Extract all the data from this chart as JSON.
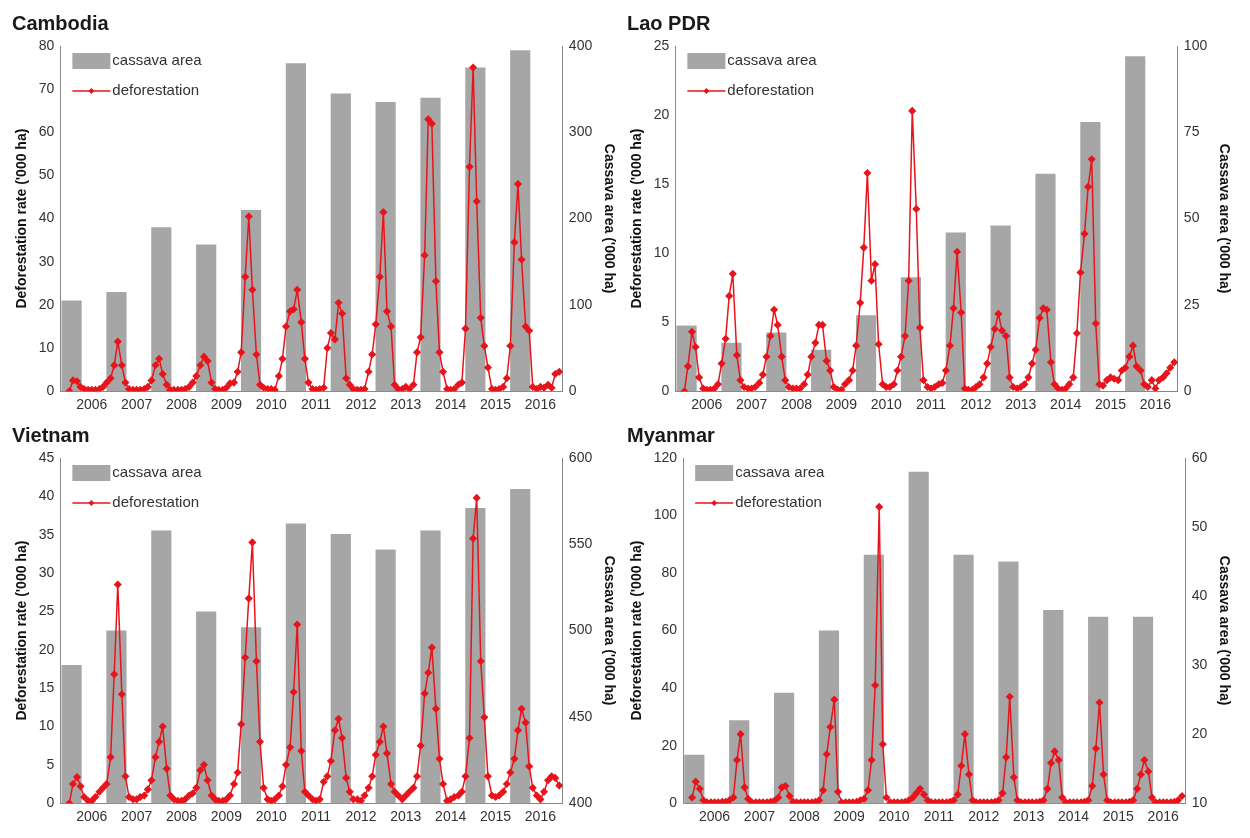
{
  "chart_data": [
    {
      "type": "line",
      "title": "Cambodia",
      "ylabel": "Deforestation rate ('000 ha)",
      "y2label": "Cassava area ('000 ha)",
      "xlim": [
        2005.3,
        2016.5
      ],
      "xticks": [
        2006,
        2007,
        2008,
        2009,
        2010,
        2011,
        2012,
        2013,
        2014,
        2015,
        2016
      ],
      "ylim": [
        0,
        80
      ],
      "yticks": [
        0,
        10,
        20,
        30,
        40,
        50,
        60,
        70,
        80
      ],
      "y2lim": [
        0,
        400
      ],
      "y2ticks": [
        0,
        100,
        200,
        300,
        400
      ],
      "legend": "top left",
      "marker": "diamond",
      "grid": false,
      "x": [
        2005.5,
        2005.58,
        2005.67,
        2005.75,
        2005.83,
        2005.92,
        2006,
        2006.08,
        2006.17,
        2006.25,
        2006.33,
        2006.42,
        2006.5,
        2006.58,
        2006.67,
        2006.75,
        2006.83,
        2006.92,
        2007,
        2007.08,
        2007.17,
        2007.25,
        2007.33,
        2007.42,
        2007.5,
        2007.58,
        2007.67,
        2007.75,
        2007.83,
        2007.92,
        2008,
        2008.08,
        2008.17,
        2008.25,
        2008.33,
        2008.42,
        2008.5,
        2008.58,
        2008.67,
        2008.75,
        2008.83,
        2008.92,
        2009,
        2009.08,
        2009.17,
        2009.25,
        2009.33,
        2009.42,
        2009.5,
        2009.58,
        2009.67,
        2009.75,
        2009.83,
        2009.92,
        2010,
        2010.08,
        2010.17,
        2010.25,
        2010.33,
        2010.42,
        2010.5,
        2010.58,
        2010.67,
        2010.75,
        2010.83,
        2010.92,
        2011,
        2011.08,
        2011.17,
        2011.25,
        2011.33,
        2011.42,
        2011.5,
        2011.58,
        2011.67,
        2011.75,
        2011.83,
        2011.92,
        2012,
        2012.08,
        2012.17,
        2012.25,
        2012.33,
        2012.42,
        2012.5,
        2012.58,
        2012.67,
        2012.75,
        2012.83,
        2012.92,
        2013,
        2013.08,
        2013.17,
        2013.25,
        2013.33,
        2013.42,
        2013.5,
        2013.58,
        2013.67,
        2013.75,
        2013.83,
        2013.92,
        2014,
        2014.08,
        2014.17,
        2014.25,
        2014.33,
        2014.42,
        2014.5,
        2014.58,
        2014.67,
        2014.75,
        2014.83,
        2014.92,
        2015,
        2015.08,
        2015.17,
        2015.25,
        2015.33,
        2015.42,
        2015.5,
        2015.58,
        2015.67,
        2015.75,
        2015.83,
        2015.92,
        2016,
        2016.08,
        2016.17,
        2016.25,
        2016.33,
        2016.42
      ],
      "series": [
        {
          "name": "cassava area",
          "type": "bar",
          "axis": "y2",
          "color": "#a6a6a6",
          "x": [
            2005.55,
            2006.55,
            2007.55,
            2008.55,
            2009.55,
            2010.55,
            2011.55,
            2012.55,
            2013.55,
            2014.55,
            2015.55
          ],
          "values": [
            105,
            115,
            190,
            170,
            210,
            380,
            345,
            335,
            340,
            375,
            395
          ]
        },
        {
          "name": "deforestation",
          "color": "#e8141b",
          "values": [
            0,
            2.5,
            2.3,
            1,
            0.5,
            0.3,
            0.3,
            0.3,
            0.5,
            1,
            2,
            3,
            6,
            11.5,
            6,
            2,
            0.5,
            0.3,
            0.3,
            0.3,
            0.5,
            1,
            2.5,
            6,
            7.5,
            4,
            1.5,
            0.3,
            0.3,
            0.3,
            0.3,
            0.5,
            1,
            2,
            3.5,
            6,
            8,
            7,
            2,
            0.5,
            0.3,
            0.3,
            0.8,
            1.8,
            2,
            4.5,
            9,
            26.5,
            40.5,
            23.5,
            8.5,
            1.5,
            0.8,
            0.5,
            0.5,
            0.3,
            3.5,
            7.5,
            15,
            18.5,
            19,
            23.5,
            16,
            7.5,
            2,
            0.5,
            0.3,
            0.5,
            0.8,
            10,
            13.5,
            12,
            20.5,
            18,
            3,
            1.5,
            0.5,
            0.3,
            0.3,
            0.5,
            4.5,
            8.5,
            15.5,
            26.5,
            41.5,
            18.5,
            15,
            1.5,
            0.5,
            0.5,
            1,
            0.5,
            1.5,
            9,
            12.5,
            31.5,
            63,
            62,
            25.5,
            9,
            4.5,
            0.5,
            0.3,
            0.5,
            1.5,
            2,
            14.5,
            52,
            75,
            44,
            17,
            10.5,
            5.5,
            0.5,
            0.3,
            0.5,
            1,
            3,
            10.5,
            34.5,
            48,
            30.5,
            15,
            14,
            1,
            0.5,
            1,
            0.8,
            1.5,
            0.8,
            4,
            4.5
          ]
        }
      ]
    },
    {
      "type": "line",
      "title": "Lao PDR",
      "ylabel": "Deforestation rate ('000 ha)",
      "y2label": "Cassava area ('000 ha)",
      "xlim": [
        2005.3,
        2016.5
      ],
      "xticks": [
        2006,
        2007,
        2008,
        2009,
        2010,
        2011,
        2012,
        2013,
        2014,
        2015,
        2016
      ],
      "ylim": [
        0,
        25
      ],
      "yticks": [
        0,
        5,
        10,
        15,
        20,
        25
      ],
      "y2lim": [
        0,
        100
      ],
      "y2ticks": [
        0,
        25,
        50,
        75,
        100
      ],
      "legend": "top left",
      "marker": "diamond",
      "grid": false,
      "x": [
        2005.5,
        2005.58,
        2005.67,
        2005.75,
        2005.83,
        2005.92,
        2006,
        2006.08,
        2006.17,
        2006.25,
        2006.33,
        2006.42,
        2006.5,
        2006.58,
        2006.67,
        2006.75,
        2006.83,
        2006.92,
        2007,
        2007.08,
        2007.17,
        2007.25,
        2007.33,
        2007.42,
        2007.5,
        2007.58,
        2007.67,
        2007.75,
        2007.83,
        2007.92,
        2008,
        2008.08,
        2008.17,
        2008.25,
        2008.33,
        2008.42,
        2008.5,
        2008.58,
        2008.67,
        2008.75,
        2008.83,
        2008.92,
        2009,
        2009.08,
        2009.17,
        2009.25,
        2009.33,
        2009.42,
        2009.5,
        2009.58,
        2009.67,
        2009.75,
        2009.83,
        2009.92,
        2010,
        2010.08,
        2010.17,
        2010.25,
        2010.33,
        2010.42,
        2010.5,
        2010.58,
        2010.67,
        2010.75,
        2010.83,
        2010.92,
        2011,
        2011.08,
        2011.17,
        2011.25,
        2011.33,
        2011.42,
        2011.5,
        2011.58,
        2011.67,
        2011.75,
        2011.83,
        2011.92,
        2012,
        2012.08,
        2012.17,
        2012.25,
        2012.33,
        2012.42,
        2012.5,
        2012.58,
        2012.67,
        2012.75,
        2012.83,
        2012.92,
        2013,
        2013.08,
        2013.17,
        2013.25,
        2013.33,
        2013.42,
        2013.5,
        2013.58,
        2013.67,
        2013.75,
        2013.83,
        2013.92,
        2014,
        2014.08,
        2014.17,
        2014.25,
        2014.33,
        2014.42,
        2014.5,
        2014.58,
        2014.67,
        2014.75,
        2014.83,
        2014.92,
        2015,
        2015.08,
        2015.17,
        2015.25,
        2015.33,
        2015.42,
        2015.5,
        2015.58,
        2015.67,
        2015.75,
        2015.83,
        2015.92,
        2016,
        2016.08,
        2016.17,
        2016.25,
        2016.33,
        2016.42
      ],
      "series": [
        {
          "name": "cassava area",
          "type": "bar",
          "axis": "y2",
          "color": "#a6a6a6",
          "x": [
            2005.55,
            2006.55,
            2007.55,
            2008.55,
            2009.55,
            2010.55,
            2011.55,
            2012.55,
            2013.55,
            2014.55,
            2015.55
          ],
          "values": [
            19,
            14,
            17,
            12,
            22,
            33,
            46,
            48,
            63,
            78,
            97
          ]
        },
        {
          "name": "deforestation",
          "color": "#e8141b",
          "values": [
            0,
            1.8,
            4.3,
            3.2,
            1,
            0.2,
            0.1,
            0.1,
            0.2,
            0.5,
            2,
            3.8,
            6.9,
            8.5,
            2.6,
            0.8,
            0.3,
            0.2,
            0.2,
            0.3,
            0.6,
            1.2,
            2.5,
            4,
            5.9,
            4.8,
            2.5,
            0.8,
            0.3,
            0.2,
            0.2,
            0.2,
            0.5,
            1.2,
            2.5,
            3.5,
            4.8,
            4.8,
            2.2,
            1.5,
            0.3,
            0.1,
            0.1,
            0.5,
            0.8,
            1.5,
            3.3,
            6.4,
            10.4,
            15.8,
            8,
            9.2,
            3.4,
            0.5,
            0.3,
            0.3,
            0.5,
            1.5,
            2.5,
            4,
            8,
            20.3,
            13.2,
            4.6,
            0.8,
            0.3,
            0.2,
            0.3,
            0.5,
            0.6,
            1.5,
            3.3,
            6,
            10.1,
            5.7,
            0.2,
            0.1,
            0.1,
            0.3,
            0.5,
            1,
            2,
            3.2,
            4.5,
            5.6,
            4.4,
            4,
            1,
            0.3,
            0.2,
            0.3,
            0.5,
            1,
            2,
            3,
            5.3,
            6,
            5.9,
            2.1,
            0.5,
            0.2,
            0.1,
            0.2,
            0.5,
            1,
            4.2,
            8.6,
            11.4,
            14.8,
            16.8,
            4.9,
            0.5,
            0.4,
            0.8,
            1,
            0.9,
            0.8,
            1.5,
            1.7,
            2.5,
            3.3,
            1.8,
            1.5,
            0.5,
            0.3,
            0.8,
            0.2,
            0.8,
            1,
            1.3,
            1.7,
            2.1
          ]
        }
      ]
    },
    {
      "type": "line",
      "title": "Vietnam",
      "ylabel": "Deforestation rate ('000 ha)",
      "y2label": "Cassava area ('000 ha)",
      "xlim": [
        2005.3,
        2016.5
      ],
      "xticks": [
        2006,
        2007,
        2008,
        2009,
        2010,
        2011,
        2012,
        2013,
        2014,
        2015,
        2016
      ],
      "ylim": [
        0,
        45
      ],
      "yticks": [
        0,
        5,
        10,
        15,
        20,
        25,
        30,
        35,
        40,
        45
      ],
      "y2lim": [
        400,
        600
      ],
      "y2ticks": [
        400,
        450,
        500,
        550,
        600
      ],
      "legend": "top left",
      "marker": "diamond",
      "grid": false,
      "x": [
        2005.5,
        2005.58,
        2005.67,
        2005.75,
        2005.83,
        2005.92,
        2006,
        2006.08,
        2006.17,
        2006.25,
        2006.33,
        2006.42,
        2006.5,
        2006.58,
        2006.67,
        2006.75,
        2006.83,
        2006.92,
        2007,
        2007.08,
        2007.17,
        2007.25,
        2007.33,
        2007.42,
        2007.5,
        2007.58,
        2007.67,
        2007.75,
        2007.83,
        2007.92,
        2008,
        2008.08,
        2008.17,
        2008.25,
        2008.33,
        2008.42,
        2008.5,
        2008.58,
        2008.67,
        2008.75,
        2008.83,
        2008.92,
        2009,
        2009.08,
        2009.17,
        2009.25,
        2009.33,
        2009.42,
        2009.5,
        2009.58,
        2009.67,
        2009.75,
        2009.83,
        2009.92,
        2010,
        2010.08,
        2010.17,
        2010.25,
        2010.33,
        2010.42,
        2010.5,
        2010.58,
        2010.67,
        2010.75,
        2010.83,
        2010.92,
        2011,
        2011.08,
        2011.17,
        2011.25,
        2011.33,
        2011.42,
        2011.5,
        2011.58,
        2011.67,
        2011.75,
        2011.83,
        2011.92,
        2012,
        2012.08,
        2012.17,
        2012.25,
        2012.33,
        2012.42,
        2012.5,
        2012.58,
        2012.67,
        2012.75,
        2012.83,
        2012.92,
        2013,
        2013.08,
        2013.17,
        2013.25,
        2013.33,
        2013.42,
        2013.5,
        2013.58,
        2013.67,
        2013.75,
        2013.83,
        2013.92,
        2014,
        2014.08,
        2014.17,
        2014.25,
        2014.33,
        2014.42,
        2014.5,
        2014.58,
        2014.67,
        2014.75,
        2014.83,
        2014.92,
        2015,
        2015.08,
        2015.17,
        2015.25,
        2015.33,
        2015.42,
        2015.5,
        2015.58,
        2015.67,
        2015.75,
        2015.83,
        2015.92,
        2016,
        2016.08,
        2016.17,
        2016.25,
        2016.33,
        2016.42
      ],
      "series": [
        {
          "name": "cassava area",
          "type": "bar",
          "axis": "y2",
          "color": "#a6a6a6",
          "x": [
            2005.55,
            2006.55,
            2007.55,
            2008.55,
            2009.55,
            2010.55,
            2011.55,
            2012.55,
            2013.55,
            2014.55,
            2015.55
          ],
          "values": [
            480,
            500,
            558,
            511,
            502,
            562,
            556,
            547,
            558,
            571,
            582
          ]
        },
        {
          "name": "deforestation",
          "color": "#e8141b",
          "values": [
            0,
            2.5,
            3.4,
            2.2,
            0.8,
            0.3,
            0.3,
            0.8,
            1.5,
            2,
            2.5,
            6,
            16.8,
            28.5,
            14.2,
            3.5,
            0.8,
            0.5,
            0.5,
            0.8,
            1,
            1.8,
            3,
            6,
            8,
            10,
            4.5,
            1,
            0.5,
            0.3,
            0.3,
            0.5,
            1,
            1.3,
            2,
            4.3,
            5,
            3,
            1,
            0.5,
            0.3,
            0.3,
            0.5,
            1,
            2.5,
            4,
            10.3,
            19,
            26.7,
            34,
            18.5,
            8,
            2,
            0.5,
            0.3,
            0.5,
            1,
            2.2,
            5,
            7.3,
            14.5,
            23.3,
            6.8,
            1.5,
            1,
            0.5,
            0.3,
            0.5,
            2.8,
            3.5,
            5.5,
            9.5,
            11,
            8.5,
            3.3,
            1.5,
            0.5,
            0.5,
            0.3,
            1,
            2,
            3.5,
            6.3,
            8,
            10,
            6.5,
            2.5,
            1.5,
            1,
            0.5,
            1,
            1.5,
            2,
            3.5,
            7.5,
            14.3,
            17,
            20.3,
            12.3,
            5.8,
            2.5,
            0.3,
            0.5,
            0.8,
            1,
            1.5,
            3.5,
            8.5,
            34.5,
            39.8,
            18.5,
            11.2,
            3.5,
            1,
            0.8,
            1,
            1.5,
            2.5,
            4,
            5.8,
            9.5,
            12.3,
            10.5,
            4.8,
            2,
            1,
            0.5,
            1.5,
            3,
            3.5,
            3.3,
            2.3
          ]
        }
      ]
    },
    {
      "type": "line",
      "title": "Myanmar",
      "ylabel": "Deforestation rate ('000 ha)",
      "y2label": "Cassava area ('000 ha)",
      "xlim": [
        2005.3,
        2016.5
      ],
      "xticks": [
        2006,
        2007,
        2008,
        2009,
        2010,
        2011,
        2012,
        2013,
        2014,
        2015,
        2016
      ],
      "ylim": [
        0,
        120
      ],
      "yticks": [
        0,
        20,
        40,
        60,
        80,
        100,
        120
      ],
      "y2lim": [
        10,
        60
      ],
      "y2ticks": [
        10,
        20,
        30,
        40,
        50,
        60
      ],
      "legend": "top left",
      "marker": "diamond",
      "grid": false,
      "x": [
        2005.5,
        2005.58,
        2005.67,
        2005.75,
        2005.83,
        2005.92,
        2006,
        2006.08,
        2006.17,
        2006.25,
        2006.33,
        2006.42,
        2006.5,
        2006.58,
        2006.67,
        2006.75,
        2006.83,
        2006.92,
        2007,
        2007.08,
        2007.17,
        2007.25,
        2007.33,
        2007.42,
        2007.5,
        2007.58,
        2007.67,
        2007.75,
        2007.83,
        2007.92,
        2008,
        2008.08,
        2008.17,
        2008.25,
        2008.33,
        2008.42,
        2008.5,
        2008.58,
        2008.67,
        2008.75,
        2008.83,
        2008.92,
        2009,
        2009.08,
        2009.17,
        2009.25,
        2009.33,
        2009.42,
        2009.5,
        2009.58,
        2009.67,
        2009.75,
        2009.83,
        2009.92,
        2010,
        2010.08,
        2010.17,
        2010.25,
        2010.33,
        2010.42,
        2010.5,
        2010.58,
        2010.67,
        2010.75,
        2010.83,
        2010.92,
        2011,
        2011.08,
        2011.17,
        2011.25,
        2011.33,
        2011.42,
        2011.5,
        2011.58,
        2011.67,
        2011.75,
        2011.83,
        2011.92,
        2012,
        2012.08,
        2012.17,
        2012.25,
        2012.33,
        2012.42,
        2012.5,
        2012.58,
        2012.67,
        2012.75,
        2012.83,
        2012.92,
        2013,
        2013.08,
        2013.17,
        2013.25,
        2013.33,
        2013.42,
        2013.5,
        2013.58,
        2013.67,
        2013.75,
        2013.83,
        2013.92,
        2014,
        2014.08,
        2014.17,
        2014.25,
        2014.33,
        2014.42,
        2014.5,
        2014.58,
        2014.67,
        2014.75,
        2014.83,
        2014.92,
        2015,
        2015.08,
        2015.17,
        2015.25,
        2015.33,
        2015.42,
        2015.5,
        2015.58,
        2015.67,
        2015.75,
        2015.83,
        2015.92,
        2016,
        2016.08,
        2016.17,
        2016.25,
        2016.33,
        2016.42
      ],
      "series": [
        {
          "name": "cassava area",
          "type": "bar",
          "axis": "y2",
          "color": "#a6a6a6",
          "x": [
            2005.55,
            2006.55,
            2007.55,
            2008.55,
            2009.55,
            2010.55,
            2011.55,
            2012.55,
            2013.55,
            2014.55,
            2015.55
          ],
          "values": [
            17,
            22,
            26,
            35,
            46,
            58,
            46,
            45,
            38,
            37,
            37
          ]
        },
        {
          "name": "deforestation",
          "color": "#e8141b",
          "values": [
            2,
            7.5,
            5,
            1,
            0.3,
            0.3,
            0.3,
            0.3,
            0.5,
            0.5,
            1,
            2,
            15,
            24,
            5.5,
            1.5,
            0.3,
            0.3,
            0.3,
            0.3,
            0.3,
            0.5,
            0.8,
            2,
            5.5,
            6,
            2.5,
            0.5,
            0.3,
            0.3,
            0.3,
            0.3,
            0.3,
            0.5,
            1,
            4.5,
            17,
            26.5,
            36,
            4,
            0.3,
            0.3,
            0.3,
            0.3,
            0.5,
            1,
            1.5,
            4.5,
            15,
            41,
            103,
            20.5,
            2,
            0.3,
            0.3,
            0.3,
            0.3,
            0.5,
            1,
            2,
            3.5,
            5,
            3,
            1,
            0.3,
            0.3,
            0.3,
            0.3,
            0.3,
            0.5,
            1,
            3,
            13,
            24,
            10,
            1,
            0.3,
            0.3,
            0.3,
            0.3,
            0.3,
            0.5,
            1,
            3.5,
            16,
            37,
            9,
            1,
            0.3,
            0.3,
            0.3,
            0.3,
            0.3,
            0.5,
            1,
            5,
            14,
            18,
            15,
            2,
            0.3,
            0.3,
            0.3,
            0.3,
            0.3,
            0.5,
            1,
            6,
            19,
            35,
            10,
            1,
            0.3,
            0.3,
            0.3,
            0.3,
            0.3,
            0.5,
            1,
            5,
            10,
            15,
            11,
            2,
            0.3,
            0.3,
            0.3,
            0.3,
            0.3,
            0.5,
            1,
            2.5
          ]
        }
      ]
    }
  ]
}
